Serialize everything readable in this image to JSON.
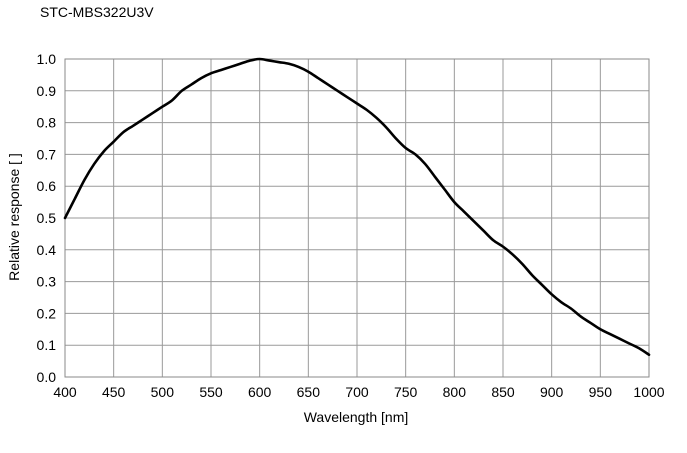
{
  "chart_data": {
    "type": "line",
    "title": "STC-MBS322U3V",
    "xlabel": "Wavelength [nm]",
    "ylabel": "Relative response [ ]",
    "xlim": [
      400,
      1000
    ],
    "ylim": [
      0,
      1.0
    ],
    "x_ticks": [
      "400",
      "450",
      "500",
      "550",
      "600",
      "650",
      "700",
      "750",
      "800",
      "850",
      "900",
      "950",
      "1000"
    ],
    "y_ticks": [
      "0.0",
      "0.1",
      "0.2",
      "0.3",
      "0.4",
      "0.5",
      "0.6",
      "0.7",
      "0.8",
      "0.9",
      "1.0"
    ],
    "grid": true,
    "legend": "none",
    "series": [
      {
        "color": "#000000",
        "x": [
          400,
          410,
          420,
          430,
          440,
          450,
          460,
          470,
          480,
          490,
          500,
          510,
          520,
          530,
          540,
          550,
          560,
          570,
          580,
          590,
          600,
          610,
          620,
          630,
          640,
          650,
          660,
          670,
          680,
          690,
          700,
          710,
          720,
          730,
          740,
          750,
          760,
          770,
          780,
          790,
          800,
          810,
          820,
          830,
          840,
          850,
          860,
          870,
          880,
          890,
          900,
          910,
          920,
          930,
          940,
          950,
          960,
          970,
          980,
          990,
          1000
        ],
        "y": [
          0.5,
          0.56,
          0.62,
          0.67,
          0.71,
          0.74,
          0.77,
          0.79,
          0.81,
          0.83,
          0.85,
          0.87,
          0.9,
          0.92,
          0.94,
          0.955,
          0.965,
          0.975,
          0.985,
          0.995,
          1.0,
          0.995,
          0.99,
          0.985,
          0.975,
          0.96,
          0.94,
          0.92,
          0.9,
          0.88,
          0.86,
          0.84,
          0.815,
          0.785,
          0.75,
          0.72,
          0.7,
          0.67,
          0.63,
          0.59,
          0.55,
          0.52,
          0.49,
          0.46,
          0.43,
          0.41,
          0.385,
          0.355,
          0.32,
          0.29,
          0.26,
          0.235,
          0.215,
          0.19,
          0.17,
          0.15,
          0.135,
          0.12,
          0.105,
          0.09,
          0.07
        ]
      }
    ]
  }
}
